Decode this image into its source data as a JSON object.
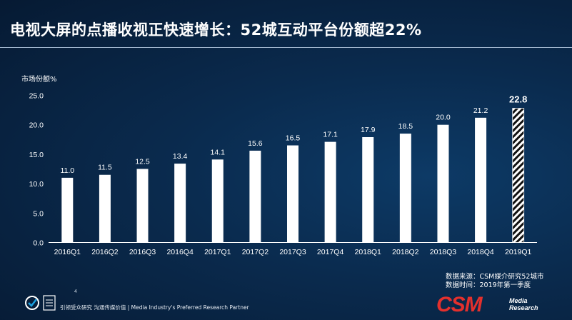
{
  "title": "电视大屏的点播收视正快速增长：52城互动平台份额超22%",
  "footer": {
    "source_line1": "数据来源：CSM媒介研究52城市",
    "source_line2": "数据时间：2019年第一季度",
    "page_number": "4",
    "tagline": "引领受众研究 沟通传媒价值 | Media Industry's Preferred Research Partner",
    "logo_text": "CSM",
    "logo_sub1": "Media",
    "logo_sub2": "Research",
    "cert_icon": "certification-badges-icon"
  },
  "colors": {
    "bar": "#ffffff",
    "axis_text": "#ffffff",
    "brand_red": "#e4302d"
  },
  "chart_data": {
    "type": "bar",
    "ylabel": "市场份额%",
    "ylim": [
      0,
      25
    ],
    "yticks": [
      "0.0",
      "5.0",
      "10.0",
      "15.0",
      "20.0",
      "25.0"
    ],
    "categories": [
      "2016Q1",
      "2016Q2",
      "2016Q3",
      "2016Q4",
      "2017Q1",
      "2017Q2",
      "2017Q3",
      "2017Q4",
      "2018Q1",
      "2018Q2",
      "2018Q3",
      "2018Q4",
      "2019Q1"
    ],
    "values": [
      11.0,
      11.5,
      12.5,
      13.4,
      14.1,
      15.6,
      16.5,
      17.1,
      17.9,
      18.5,
      20.0,
      21.2,
      22.8
    ],
    "value_labels": [
      "11.0",
      "11.5",
      "12.5",
      "13.4",
      "14.1",
      "15.6",
      "16.5",
      "17.1",
      "17.9",
      "18.5",
      "20.0",
      "21.2",
      "22.8"
    ],
    "highlight_last": true,
    "legend": "none",
    "grid": false
  }
}
